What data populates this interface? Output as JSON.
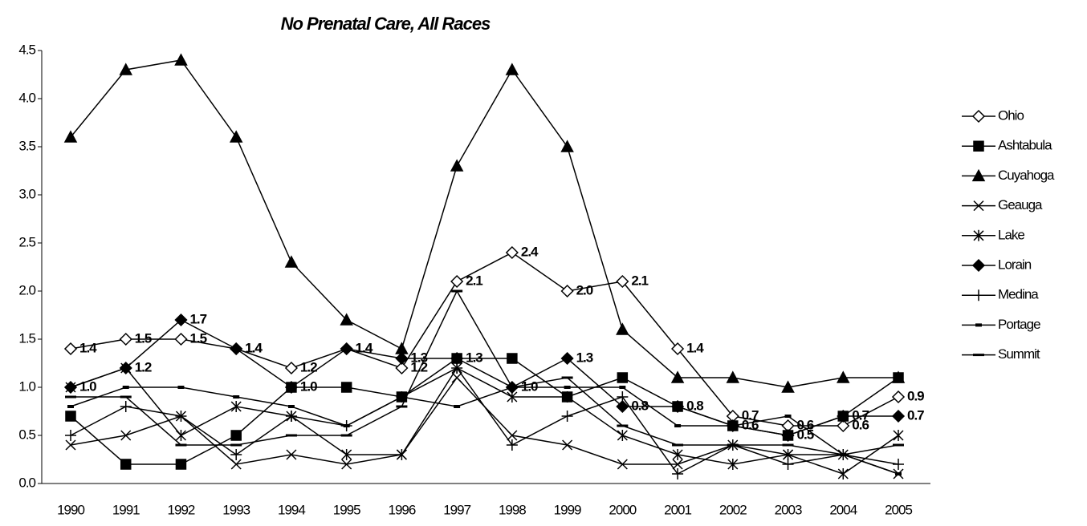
{
  "chart_data": {
    "type": "line",
    "title": "No Prenatal Care, All Races",
    "categories": [
      "1990",
      "1991",
      "1992",
      "1993",
      "1994",
      "1995",
      "1996",
      "1997",
      "1998",
      "1999",
      "2000",
      "2001",
      "2002",
      "2003",
      "2004",
      "2005"
    ],
    "ylim": [
      0,
      4.5
    ],
    "yticks": [
      {
        "value": 0,
        "label": "0.0"
      },
      0.5,
      {
        "value": 1,
        "label": "1.0"
      },
      1.5,
      {
        "value": 2,
        "label": "2.0"
      },
      2.5,
      {
        "value": 3,
        "label": "3.0"
      },
      3.5,
      {
        "value": 4,
        "label": "4.0"
      },
      4.5
    ],
    "grid": false,
    "legend": "right",
    "series": [
      {
        "name": "Ohio",
        "color": "#000000",
        "marker": "diamond-open",
        "values": [
          1.4,
          1.5,
          1.5,
          1.4,
          1.2,
          1.4,
          1.2,
          2.1,
          2.4,
          2.0,
          2.1,
          1.4,
          0.7,
          0.6,
          0.6,
          0.9
        ],
        "value_labels": [
          "1.4",
          "1.5",
          "1.5",
          "1.4",
          "1.2",
          "1.4",
          "1.2",
          "2.1",
          "2.4",
          "2.0",
          "2.1",
          "1.4",
          "0.7",
          "0.6",
          "0.6",
          "0.9"
        ]
      },
      {
        "name": "Ashtabula",
        "color": "#000000",
        "marker": "square",
        "values": [
          0.7,
          0.2,
          0.2,
          0.5,
          1.0,
          1.0,
          0.9,
          1.3,
          1.3,
          0.9,
          1.1,
          0.8,
          0.6,
          0.5,
          0.7,
          1.1
        ]
      },
      {
        "name": "Cuyahoga",
        "color": "#000000",
        "marker": "triangle",
        "values": [
          3.6,
          4.3,
          4.4,
          3.6,
          2.3,
          1.7,
          1.4,
          3.3,
          4.3,
          3.5,
          1.6,
          1.1,
          1.1,
          1.0,
          1.1,
          1.1
        ]
      },
      {
        "name": "Geauga",
        "color": "#000000",
        "marker": "x",
        "values": [
          0.4,
          0.5,
          0.7,
          0.2,
          0.3,
          0.2,
          0.3,
          1.1,
          0.5,
          0.4,
          0.2,
          0.2,
          0.4,
          0.3,
          0.3,
          0.1
        ]
      },
      {
        "name": "Lake",
        "color": "#000000",
        "marker": "star",
        "values": [
          1.0,
          1.2,
          0.5,
          0.8,
          0.7,
          0.3,
          0.3,
          1.2,
          0.9,
          0.9,
          0.5,
          0.3,
          0.2,
          0.3,
          0.1,
          0.5
        ]
      },
      {
        "name": "Lorain",
        "color": "#000000",
        "marker": "diamond",
        "values": [
          1.0,
          1.2,
          1.7,
          1.4,
          1.0,
          1.4,
          1.3,
          1.3,
          1.0,
          1.3,
          0.8,
          0.8,
          0.6,
          0.5,
          0.7,
          0.7
        ],
        "value_labels": [
          "1.0",
          "1.2",
          "1.7",
          "1.4",
          "1.0",
          "1.4",
          "1.3",
          "1.3",
          "1.0",
          "1.3",
          "0.8",
          "0.8",
          "0.6",
          "0.5",
          "0.7",
          "0.7"
        ]
      },
      {
        "name": "Medina",
        "color": "#000000",
        "marker": "plus",
        "values": [
          0.5,
          0.8,
          0.7,
          0.3,
          0.7,
          0.6,
          0.9,
          1.2,
          0.4,
          0.7,
          0.9,
          0.1,
          0.4,
          0.2,
          0.3,
          0.2
        ]
      },
      {
        "name": "Portage",
        "color": "#000000",
        "marker": "dash-small",
        "values": [
          0.8,
          1.0,
          1.0,
          0.9,
          0.8,
          0.6,
          0.9,
          0.8,
          1.0,
          1.0,
          1.0,
          0.6,
          0.6,
          0.7,
          0.3,
          0.1
        ]
      },
      {
        "name": "Summit",
        "color": "#000000",
        "marker": "dash",
        "values": [
          0.9,
          0.9,
          0.4,
          0.4,
          0.5,
          0.5,
          0.8,
          2.0,
          1.0,
          1.1,
          0.6,
          0.4,
          0.4,
          0.4,
          0.3,
          0.4
        ]
      }
    ]
  }
}
